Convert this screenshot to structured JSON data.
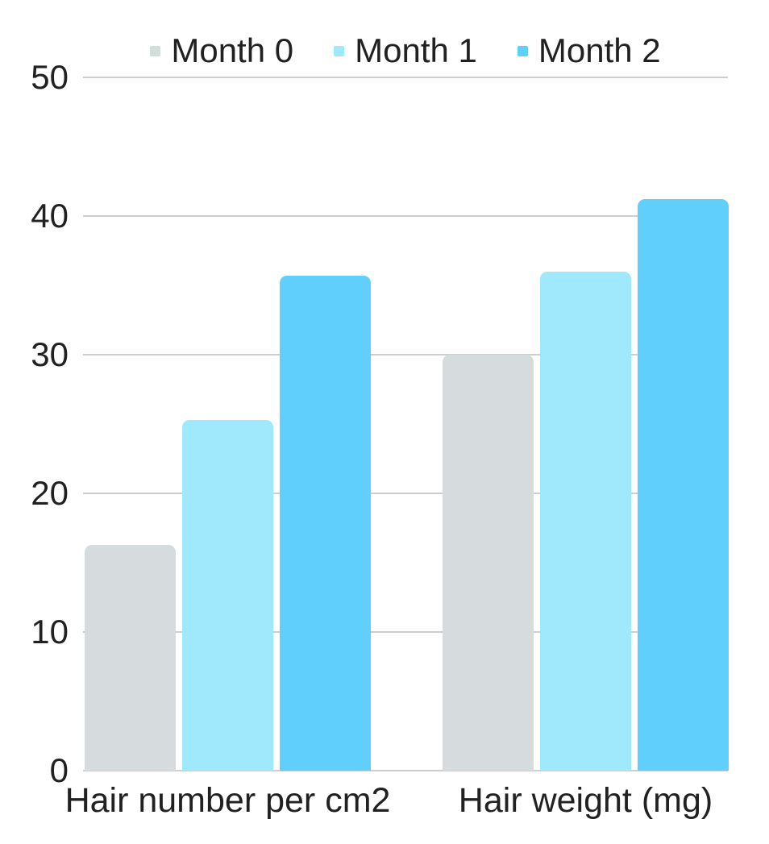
{
  "chart_data": {
    "type": "bar",
    "title": "",
    "categories": [
      "Hair number per cm2",
      "Hair weight (mg)"
    ],
    "series": [
      {
        "name": "Month 0",
        "color": "#d6dcde",
        "values": [
          16.3,
          30.0
        ]
      },
      {
        "name": "Month 1",
        "color": "#a0e8fc",
        "values": [
          25.3,
          36.0
        ]
      },
      {
        "name": "Month 2",
        "color": "#61cffc",
        "values": [
          35.7,
          41.2
        ]
      }
    ],
    "xlabel": "",
    "ylabel": "",
    "ylim": [
      0,
      50
    ],
    "yticks": [
      50,
      40,
      30,
      20,
      10,
      0
    ],
    "grid": true,
    "legend_position": "top"
  },
  "styles": {
    "background": "#ffffff",
    "text_color": "#212121",
    "gridline_color": "#cccfd0"
  }
}
